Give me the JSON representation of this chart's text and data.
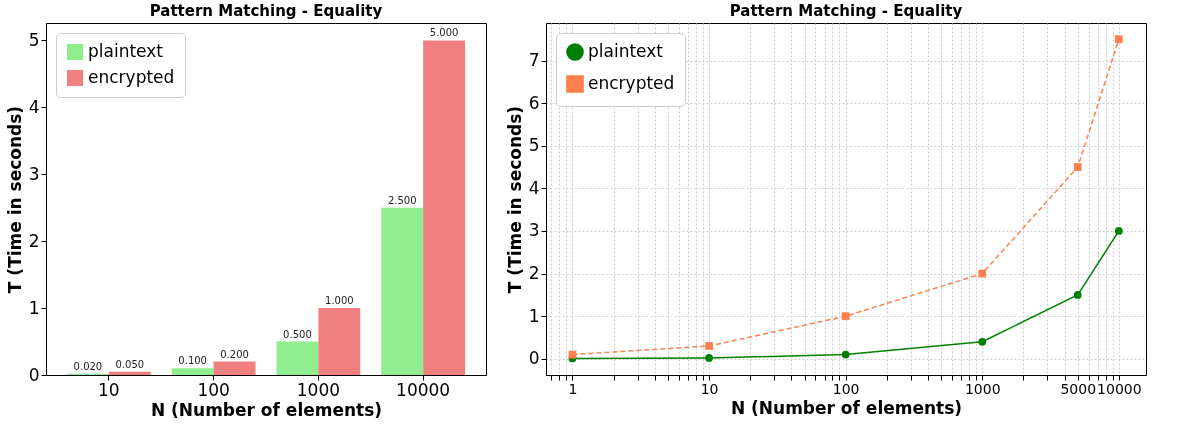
{
  "chart_data": [
    {
      "type": "bar",
      "title": "Pattern Matching - Equality",
      "xlabel": "N (Number of elements)",
      "ylabel": "T (Time in seconds)",
      "categories": [
        "10",
        "100",
        "1000",
        "10000"
      ],
      "series": [
        {
          "name": "plaintext",
          "color": "#90ee90",
          "values": [
            0.02,
            0.1,
            0.5,
            2.5
          ],
          "value_labels": [
            "0.020",
            "0.100",
            "0.500",
            "2.500"
          ]
        },
        {
          "name": "encrypted",
          "color": "#f08080",
          "values": [
            0.05,
            0.2,
            1.0,
            5.0
          ],
          "value_labels": [
            "0.050",
            "0.200",
            "1.000",
            "5.000"
          ]
        }
      ],
      "ylim": [
        0,
        5.26
      ],
      "yticks": [
        0,
        1,
        2,
        3,
        4,
        5
      ],
      "grid": false,
      "legend": "top left"
    },
    {
      "type": "line",
      "title": "Pattern Matching - Equality",
      "xlabel": "N (Number of elements)",
      "ylabel": "T (Time in seconds)",
      "x": [
        1,
        10,
        100,
        1000,
        5000,
        10000
      ],
      "series": [
        {
          "name": "plaintext",
          "color": "#008000",
          "values": [
            0.01,
            0.02,
            0.1,
            0.4,
            1.5,
            3.0
          ],
          "marker": "circle",
          "line_style": "solid"
        },
        {
          "name": "encrypted",
          "color": "#ff7f50",
          "values": [
            0.1,
            0.3,
            1.0,
            2.0,
            4.5,
            7.5
          ],
          "marker": "square",
          "line_style": "dashed"
        }
      ],
      "log": "x",
      "xlim": [
        0.64,
        15800
      ],
      "ylim": [
        -0.38,
        7.88
      ],
      "xticks": [
        {
          "value": 0.7,
          "label": null
        },
        {
          "value": 0.8,
          "label": null
        },
        {
          "value": 0.9,
          "label": null
        },
        1,
        {
          "value": 2,
          "label": null
        },
        {
          "value": 3,
          "label": null
        },
        {
          "value": 4,
          "label": null
        },
        {
          "value": 5,
          "label": null
        },
        {
          "value": 6,
          "label": null
        },
        {
          "value": 7,
          "label": null
        },
        {
          "value": 8,
          "label": null
        },
        {
          "value": 9,
          "label": null
        },
        10,
        {
          "value": 20,
          "label": null
        },
        {
          "value": 30,
          "label": null
        },
        {
          "value": 40,
          "label": null
        },
        {
          "value": 50,
          "label": null
        },
        {
          "value": 60,
          "label": null
        },
        {
          "value": 70,
          "label": null
        },
        {
          "value": 80,
          "label": null
        },
        {
          "value": 90,
          "label": null
        },
        100,
        {
          "value": 200,
          "label": null
        },
        {
          "value": 300,
          "label": null
        },
        {
          "value": 400,
          "label": null
        },
        {
          "value": 500,
          "label": null
        },
        {
          "value": 600,
          "label": null
        },
        {
          "value": 700,
          "label": null
        },
        {
          "value": 800,
          "label": null
        },
        {
          "value": 900,
          "label": null
        },
        1000,
        {
          "value": 2000,
          "label": null
        },
        {
          "value": 3000,
          "label": null
        },
        {
          "value": 4000,
          "label": null
        },
        5000,
        {
          "value": 6000,
          "label": null
        },
        {
          "value": 7000,
          "label": null
        },
        {
          "value": 8000,
          "label": null
        },
        {
          "value": 9000,
          "label": null
        },
        10000
      ],
      "yticks": [
        0,
        1,
        2,
        3,
        4,
        5,
        6,
        7
      ],
      "grid": true,
      "legend": "top left"
    }
  ]
}
